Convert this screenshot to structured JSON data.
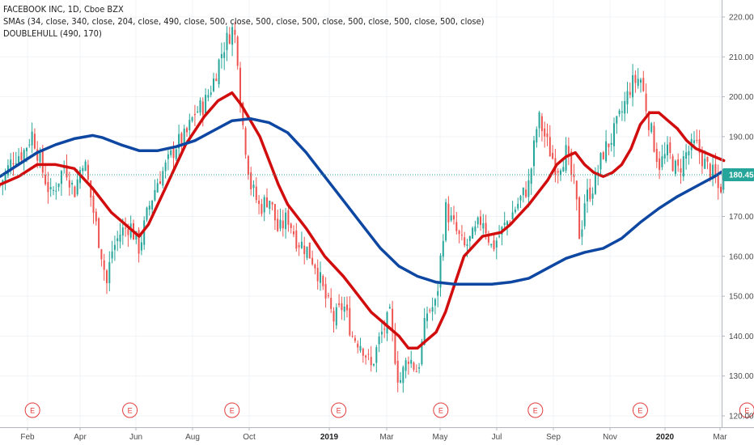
{
  "legend": {
    "line1": "FACEBOOK INC, 1D, Cboe BZX",
    "line2": "SMAs (34, close, 340, close, 204, close, 490, close, 500, close, 500, close, 500, close, 500, close, 500, close, 500, close)",
    "line3": "DOUBLEHULL (490, 170)"
  },
  "last_price_label": "180.45",
  "earnings_marker": "E",
  "colors": {
    "up": "#26a69a",
    "down": "#ef5350",
    "fast_line": "#d10d0d",
    "slow_line": "#0d47a1",
    "last_price": "#26a69a",
    "earnings": "#e23b3b"
  },
  "chart_data": {
    "type": "line",
    "title": "FACEBOOK INC, 1D, Cboe BZX",
    "ylim": [
      118,
      223
    ],
    "y_ticks": [
      120.0,
      130.0,
      140.0,
      150.0,
      160.0,
      170.0,
      180.0,
      190.0,
      200.0,
      210.0,
      220.0
    ],
    "x_ticks": [
      "Feb",
      "Apr",
      "Jun",
      "Aug",
      "Oct",
      "2019",
      "Mar",
      "May",
      "Jul",
      "Sep",
      "Nov",
      "2020",
      "Mar"
    ],
    "last_price": 180.45,
    "earnings_dates_t": [
      0.035,
      0.14,
      0.25,
      0.365,
      0.475,
      0.577,
      0.69,
      0.805
    ],
    "series": [
      {
        "kind": "close",
        "points": [
          [
            0.0,
            178
          ],
          [
            0.015,
            185
          ],
          [
            0.025,
            186
          ],
          [
            0.035,
            191
          ],
          [
            0.045,
            182
          ],
          [
            0.055,
            175
          ],
          [
            0.07,
            183
          ],
          [
            0.08,
            176
          ],
          [
            0.09,
            185
          ],
          [
            0.1,
            172
          ],
          [
            0.11,
            160
          ],
          [
            0.115,
            153
          ],
          [
            0.12,
            161
          ],
          [
            0.13,
            166
          ],
          [
            0.14,
            168
          ],
          [
            0.15,
            162
          ],
          [
            0.16,
            172
          ],
          [
            0.17,
            179
          ],
          [
            0.18,
            183
          ],
          [
            0.19,
            188
          ],
          [
            0.2,
            190
          ],
          [
            0.21,
            196
          ],
          [
            0.22,
            198
          ],
          [
            0.23,
            204
          ],
          [
            0.24,
            212
          ],
          [
            0.25,
            217
          ],
          [
            0.255,
            214
          ],
          [
            0.26,
            196
          ],
          [
            0.27,
            178
          ],
          [
            0.28,
            172
          ],
          [
            0.29,
            175
          ],
          [
            0.3,
            166
          ],
          [
            0.31,
            170
          ],
          [
            0.32,
            164
          ],
          [
            0.33,
            162
          ],
          [
            0.34,
            158
          ],
          [
            0.35,
            150
          ],
          [
            0.36,
            144
          ],
          [
            0.37,
            148
          ],
          [
            0.38,
            140
          ],
          [
            0.39,
            138
          ],
          [
            0.4,
            132
          ],
          [
            0.41,
            140
          ],
          [
            0.42,
            145
          ],
          [
            0.43,
            128
          ],
          [
            0.44,
            135
          ],
          [
            0.45,
            131
          ],
          [
            0.46,
            146
          ],
          [
            0.47,
            148
          ],
          [
            0.48,
            172
          ],
          [
            0.49,
            167
          ],
          [
            0.5,
            162
          ],
          [
            0.51,
            165
          ],
          [
            0.52,
            170
          ],
          [
            0.53,
            162
          ],
          [
            0.54,
            166
          ],
          [
            0.55,
            170
          ],
          [
            0.56,
            174
          ],
          [
            0.57,
            178
          ],
          [
            0.58,
            195
          ],
          [
            0.59,
            188
          ],
          [
            0.6,
            182
          ],
          [
            0.61,
            186
          ],
          [
            0.62,
            176
          ],
          [
            0.625,
            164
          ],
          [
            0.63,
            174
          ],
          [
            0.64,
            178
          ],
          [
            0.65,
            186
          ],
          [
            0.66,
            190
          ],
          [
            0.67,
            196
          ],
          [
            0.68,
            203
          ],
          [
            0.69,
            205
          ],
          [
            0.7,
            193
          ],
          [
            0.71,
            183
          ],
          [
            0.72,
            186
          ],
          [
            0.73,
            181
          ],
          [
            0.74,
            186
          ],
          [
            0.75,
            188
          ],
          [
            0.76,
            183
          ],
          [
            0.77,
            180
          ],
          [
            0.775,
            176
          ],
          [
            0.78,
            180.45
          ]
        ]
      },
      {
        "name": "",
        "kind": "line",
        "color": "#d10d0d",
        "points": [
          [
            0.0,
            178
          ],
          [
            0.02,
            180
          ],
          [
            0.04,
            183
          ],
          [
            0.06,
            183
          ],
          [
            0.08,
            182
          ],
          [
            0.1,
            177
          ],
          [
            0.12,
            171
          ],
          [
            0.14,
            167
          ],
          [
            0.15,
            165
          ],
          [
            0.16,
            168
          ],
          [
            0.18,
            178
          ],
          [
            0.2,
            188
          ],
          [
            0.22,
            195
          ],
          [
            0.235,
            199
          ],
          [
            0.25,
            201
          ],
          [
            0.26,
            198
          ],
          [
            0.28,
            190
          ],
          [
            0.3,
            178
          ],
          [
            0.31,
            173
          ],
          [
            0.33,
            167
          ],
          [
            0.35,
            160
          ],
          [
            0.37,
            155
          ],
          [
            0.38,
            152
          ],
          [
            0.4,
            146
          ],
          [
            0.42,
            142
          ],
          [
            0.43,
            140
          ],
          [
            0.44,
            137
          ],
          [
            0.45,
            137
          ],
          [
            0.46,
            139
          ],
          [
            0.47,
            141
          ],
          [
            0.48,
            146
          ],
          [
            0.49,
            153
          ],
          [
            0.5,
            160
          ],
          [
            0.52,
            165
          ],
          [
            0.54,
            166
          ],
          [
            0.55,
            168
          ],
          [
            0.57,
            173
          ],
          [
            0.59,
            179
          ],
          [
            0.6,
            183
          ],
          [
            0.61,
            185
          ],
          [
            0.62,
            186
          ],
          [
            0.63,
            183
          ],
          [
            0.64,
            181
          ],
          [
            0.65,
            180
          ],
          [
            0.66,
            181
          ],
          [
            0.67,
            183
          ],
          [
            0.68,
            187
          ],
          [
            0.69,
            193
          ],
          [
            0.7,
            196
          ],
          [
            0.71,
            196
          ],
          [
            0.72,
            194
          ],
          [
            0.73,
            192
          ],
          [
            0.74,
            189
          ],
          [
            0.75,
            187
          ],
          [
            0.76,
            186
          ],
          [
            0.77,
            185
          ],
          [
            0.78,
            184
          ]
        ]
      },
      {
        "name": "",
        "kind": "line",
        "color": "#0d47a1",
        "points": [
          [
            0.0,
            180
          ],
          [
            0.02,
            183
          ],
          [
            0.04,
            186
          ],
          [
            0.06,
            188
          ],
          [
            0.08,
            189.5
          ],
          [
            0.1,
            190.3
          ],
          [
            0.11,
            189.8
          ],
          [
            0.13,
            188
          ],
          [
            0.15,
            186.5
          ],
          [
            0.17,
            186.5
          ],
          [
            0.19,
            187.5
          ],
          [
            0.21,
            189
          ],
          [
            0.23,
            191.5
          ],
          [
            0.25,
            194
          ],
          [
            0.27,
            194.5
          ],
          [
            0.29,
            193.5
          ],
          [
            0.31,
            191
          ],
          [
            0.33,
            186
          ],
          [
            0.35,
            180
          ],
          [
            0.37,
            174
          ],
          [
            0.39,
            168
          ],
          [
            0.41,
            162
          ],
          [
            0.43,
            157.5
          ],
          [
            0.45,
            155
          ],
          [
            0.47,
            153.5
          ],
          [
            0.49,
            153
          ],
          [
            0.51,
            153
          ],
          [
            0.53,
            153
          ],
          [
            0.55,
            153.5
          ],
          [
            0.57,
            154.5
          ],
          [
            0.59,
            157
          ],
          [
            0.61,
            159.5
          ],
          [
            0.63,
            161
          ],
          [
            0.65,
            162
          ],
          [
            0.67,
            164.5
          ],
          [
            0.69,
            168.5
          ],
          [
            0.71,
            172
          ],
          [
            0.73,
            175
          ],
          [
            0.75,
            177.5
          ],
          [
            0.77,
            180
          ],
          [
            0.78,
            181.5
          ]
        ]
      }
    ]
  }
}
